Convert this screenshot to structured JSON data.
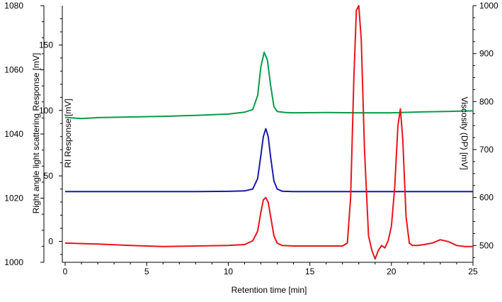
{
  "chart_data": {
    "type": "line",
    "xlabel": "Retention time [min]",
    "xlim": [
      0,
      25
    ],
    "x_ticks": [
      0,
      5,
      10,
      15,
      20,
      25
    ],
    "axes": {
      "rals": {
        "label": "Right angle light scattering Response [mV]",
        "ticks": [
          1000,
          1020,
          1040,
          1060,
          1080
        ],
        "lim": [
          1000,
          1080
        ],
        "side": "left-outer"
      },
      "ri": {
        "label": "RI Response [mV]",
        "ticks": [
          0,
          50,
          100,
          150
        ],
        "lim": [
          -16,
          180
        ],
        "side": "left-inner"
      },
      "visc": {
        "label": "Viscosity (DP) [mV]",
        "ticks": [
          500,
          600,
          700,
          800,
          900,
          1000
        ],
        "lim": [
          465,
          1000
        ],
        "side": "right"
      }
    },
    "series": [
      {
        "color": "#0a9a4a",
        "axis": "rals",
        "x": [
          0,
          1,
          2,
          4,
          6,
          8,
          10,
          11,
          11.5,
          11.8,
          12.0,
          12.2,
          12.4,
          12.6,
          12.8,
          13.0,
          13.5,
          14,
          16,
          18,
          20,
          22,
          24,
          25
        ],
        "y": [
          1045.2,
          1044.8,
          1045.1,
          1045.3,
          1045.5,
          1045.8,
          1046.2,
          1046.8,
          1047.6,
          1052,
          1061,
          1065.5,
          1063,
          1055,
          1048.5,
          1047.0,
          1046.7,
          1046.6,
          1046.7,
          1046.6,
          1046.6,
          1046.9,
          1047.1,
          1047.2
        ]
      },
      {
        "color": "#1a1aa8",
        "axis": "ri",
        "x": [
          0,
          2,
          4,
          6,
          8,
          10,
          11,
          11.5,
          11.8,
          12.0,
          12.15,
          12.3,
          12.45,
          12.6,
          12.8,
          13.0,
          13.3,
          14,
          16,
          18,
          19,
          20,
          22,
          24,
          25
        ],
        "y": [
          38,
          38,
          38,
          38,
          38,
          38.2,
          38.5,
          40,
          48,
          66,
          80,
          86,
          80,
          64,
          46,
          40,
          38.3,
          38,
          38,
          38,
          38,
          38,
          38,
          38,
          38
        ]
      },
      {
        "color": "#e8141c",
        "axis": "visc",
        "x": [
          0,
          2,
          4,
          6,
          8,
          10,
          11,
          11.5,
          11.8,
          12.0,
          12.15,
          12.3,
          12.45,
          12.6,
          12.8,
          13.0,
          13.3,
          14,
          15,
          16,
          17,
          17.3,
          17.5,
          17.7,
          17.85,
          18.0,
          18.15,
          18.35,
          18.6,
          18.8,
          19.0,
          19.2,
          19.4,
          19.6,
          19.8,
          20.0,
          20.2,
          20.4,
          20.55,
          20.7,
          20.9,
          21.1,
          21.3,
          21.6,
          22,
          22.5,
          23.0,
          23.5,
          24,
          24.5,
          25
        ],
        "y": [
          505,
          503,
          500,
          498,
          499,
          500,
          502,
          510,
          530,
          570,
          595,
          600,
          590,
          560,
          520,
          505,
          500,
          499,
          499,
          499,
          499,
          505,
          600,
          850,
          990,
          1000,
          930,
          700,
          520,
          490,
          472,
          490,
          500,
          495,
          510,
          540,
          620,
          750,
          785,
          720,
          560,
          505,
          500,
          500,
          502,
          505,
          512,
          508,
          500,
          498,
          498
        ]
      }
    ]
  }
}
